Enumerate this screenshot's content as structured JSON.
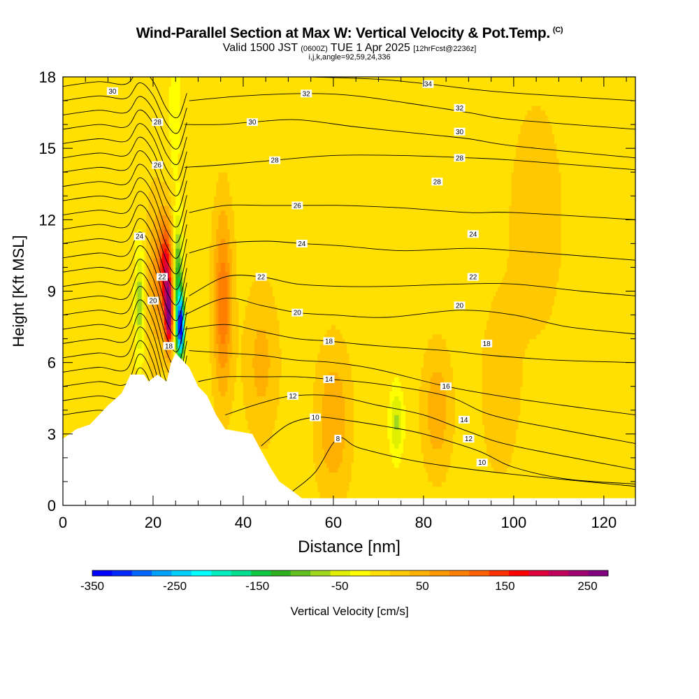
{
  "chart_data": {
    "type": "heatmap",
    "title": "Wind-Parallel Section at Max W: Vertical Velocity & Pot.Temp.",
    "title_tag": "(C)",
    "subtitle_parts": [
      "Valid 1500 JST",
      "(0600Z)",
      "TUE 1 Apr 2025",
      "[12hrFcst@2236z]"
    ],
    "subtitle2": "i,j,k,angle=92,59,24,336",
    "xlabel": "Distance [nm]",
    "ylabel": "Height [Kft MSL]",
    "xlim": [
      0,
      127
    ],
    "ylim": [
      0,
      18
    ],
    "x_ticks": [
      "0",
      "20",
      "40",
      "60",
      "80",
      "100",
      "120"
    ],
    "y_ticks": [
      "0",
      "3",
      "6",
      "9",
      "12",
      "15",
      "18"
    ],
    "colorbar": {
      "label": "Vertical Velocity [cm/s]",
      "min": -350,
      "max": 275,
      "step": 25,
      "tick_labels": [
        "-350",
        "-250",
        "-150",
        "-50",
        "50",
        "150",
        "250"
      ],
      "colors": [
        "#0000ff",
        "#0028ff",
        "#0064ff",
        "#00a0ff",
        "#00d0ff",
        "#00ffff",
        "#00f0c0",
        "#00e090",
        "#10c840",
        "#30b020",
        "#60c020",
        "#a0d820",
        "#e0f000",
        "#ffff00",
        "#ffe000",
        "#ffc800",
        "#ffb000",
        "#ff9800",
        "#ff8000",
        "#ff6000",
        "#ff3000",
        "#ff0000",
        "#e0003a",
        "#c0005a",
        "#a00070",
        "#800080"
      ]
    },
    "terrain": [
      [
        0,
        2.8
      ],
      [
        3,
        3.2
      ],
      [
        6,
        3.4
      ],
      [
        8,
        3.8
      ],
      [
        10,
        4.2
      ],
      [
        13,
        4.7
      ],
      [
        15,
        5.5
      ],
      [
        18,
        5.5
      ],
      [
        19,
        5.2
      ],
      [
        21,
        5.5
      ],
      [
        23,
        5.2
      ],
      [
        24,
        6.0
      ],
      [
        25,
        6.4
      ],
      [
        28,
        5.8
      ],
      [
        30,
        5.0
      ],
      [
        32,
        4.6
      ],
      [
        34,
        3.8
      ],
      [
        36,
        3.2
      ],
      [
        42,
        3.0
      ],
      [
        44,
        2.3
      ],
      [
        46,
        1.6
      ],
      [
        48,
        1.0
      ],
      [
        51,
        0.6
      ],
      [
        53,
        0.3
      ],
      [
        127,
        0.3
      ]
    ],
    "velocity_cells": [
      {
        "x": 17,
        "z": 8.5,
        "w": -80,
        "sx": 1.0,
        "sz": 2.5
      },
      {
        "x": 20.5,
        "z": 9.5,
        "w": 60,
        "sx": 1.8,
        "sz": 3.2
      },
      {
        "x": 22.8,
        "z": 10.0,
        "w": 180,
        "sx": 1.4,
        "sz": 2.0
      },
      {
        "x": 23.5,
        "z": 8.0,
        "w": 250,
        "sx": 0.9,
        "sz": 1.4
      },
      {
        "x": 25.5,
        "z": 9.0,
        "w": -150,
        "sx": 1.0,
        "sz": 2.8
      },
      {
        "x": 26.2,
        "z": 7.5,
        "w": -320,
        "sx": 0.8,
        "sz": 1.2
      },
      {
        "x": 24.8,
        "z": 16.5,
        "w": -40,
        "sx": 1.2,
        "sz": 2.5
      },
      {
        "x": 35.5,
        "z": 8.5,
        "w": 110,
        "sx": 2.0,
        "sz": 3.6
      },
      {
        "x": 44,
        "z": 6.0,
        "w": 45,
        "sx": 3.5,
        "sz": 3.0
      },
      {
        "x": 60,
        "z": 3.5,
        "w": 60,
        "sx": 3.5,
        "sz": 3.0
      },
      {
        "x": 74,
        "z": 3.5,
        "w": -70,
        "sx": 1.5,
        "sz": 1.5
      },
      {
        "x": 83,
        "z": 4.0,
        "w": 55,
        "sx": 3.0,
        "sz": 2.5
      },
      {
        "x": 97,
        "z": 5.0,
        "w": 30,
        "sx": 4.0,
        "sz": 3.5
      },
      {
        "x": 105,
        "z": 12.0,
        "w": 25,
        "sx": 6.0,
        "sz": 5.0
      }
    ],
    "theta_contours": [
      {
        "label": "8",
        "label_x": 61,
        "points": [
          [
            51,
            0.6
          ],
          [
            56,
            1.4
          ],
          [
            61,
            2.8
          ],
          [
            66,
            2.4
          ],
          [
            80,
            1.8
          ],
          [
            100,
            1.3
          ],
          [
            127,
            0.8
          ]
        ]
      },
      {
        "label": "10",
        "label_x": 56,
        "points": [
          [
            44,
            2.5
          ],
          [
            50,
            3.4
          ],
          [
            56,
            3.7
          ],
          [
            62,
            3.6
          ],
          [
            72,
            3.3
          ],
          [
            80,
            3.0
          ],
          [
            92,
            2.3
          ],
          [
            100,
            1.6
          ],
          [
            112,
            1.1
          ],
          [
            127,
            0.9
          ]
        ]
      },
      {
        "label": "12",
        "label_x": 51,
        "points": [
          [
            36,
            3.8
          ],
          [
            44,
            4.3
          ],
          [
            51,
            4.6
          ],
          [
            60,
            4.6
          ],
          [
            70,
            4.2
          ],
          [
            80,
            3.8
          ],
          [
            90,
            3.1
          ],
          [
            100,
            2.5
          ],
          [
            127,
            1.5
          ]
        ]
      },
      {
        "label": "14",
        "label_x": 59,
        "points": [
          [
            30,
            5.2
          ],
          [
            36,
            5.4
          ],
          [
            44,
            5.4
          ],
          [
            52,
            5.4
          ],
          [
            59,
            5.3
          ],
          [
            70,
            5.1
          ],
          [
            85,
            4.6
          ],
          [
            95,
            3.8
          ],
          [
            110,
            3.2
          ],
          [
            127,
            2.6
          ]
        ]
      },
      {
        "label": "16",
        "label_x": 85,
        "points": [
          [
            28,
            6.5
          ],
          [
            36,
            6.4
          ],
          [
            44,
            6.3
          ],
          [
            52,
            6.1
          ],
          [
            60,
            6.0
          ],
          [
            70,
            5.7
          ],
          [
            85,
            5.0
          ],
          [
            100,
            4.5
          ],
          [
            115,
            4.1
          ],
          [
            127,
            3.8
          ]
        ]
      },
      {
        "label": "18",
        "label_x": 59,
        "points": [
          [
            27,
            7.4
          ],
          [
            36,
            7.6
          ],
          [
            44,
            7.3
          ],
          [
            52,
            7.0
          ],
          [
            59,
            6.9
          ],
          [
            70,
            6.7
          ],
          [
            85,
            6.5
          ],
          [
            95,
            6.3
          ],
          [
            110,
            6.1
          ],
          [
            127,
            6.0
          ]
        ]
      },
      {
        "label": "20",
        "label_x": 52,
        "points": [
          [
            27,
            8.0
          ],
          [
            36,
            8.7
          ],
          [
            44,
            8.4
          ],
          [
            52,
            8.1
          ],
          [
            60,
            8.0
          ],
          [
            72,
            7.9
          ],
          [
            88,
            8.2
          ],
          [
            100,
            8.0
          ],
          [
            112,
            7.5
          ],
          [
            127,
            7.2
          ]
        ]
      },
      {
        "label": "22",
        "label_x": 44,
        "points": [
          [
            28,
            8.8
          ],
          [
            36,
            9.6
          ],
          [
            44,
            9.6
          ],
          [
            52,
            9.3
          ],
          [
            62,
            9.2
          ],
          [
            72,
            9.2
          ],
          [
            88,
            9.3
          ],
          [
            100,
            9.3
          ],
          [
            115,
            9.0
          ],
          [
            127,
            8.8
          ]
        ]
      },
      {
        "label": "24",
        "label_x": 53,
        "points": [
          [
            28,
            10.6
          ],
          [
            36,
            11.0
          ],
          [
            45,
            11.1
          ],
          [
            53,
            11.0
          ],
          [
            62,
            10.9
          ],
          [
            75,
            10.7
          ],
          [
            90,
            10.8
          ],
          [
            100,
            10.7
          ],
          [
            127,
            10.3
          ]
        ]
      },
      {
        "label": "26",
        "label_x": 52,
        "points": [
          [
            28,
            12.3
          ],
          [
            36,
            12.6
          ],
          [
            45,
            12.6
          ],
          [
            52,
            12.6
          ],
          [
            62,
            12.6
          ],
          [
            75,
            12.5
          ],
          [
            90,
            12.3
          ],
          [
            100,
            12.3
          ],
          [
            127,
            12.0
          ]
        ]
      },
      {
        "label": "28",
        "label_x": 47,
        "points": [
          [
            27,
            14.2
          ],
          [
            35,
            14.3
          ],
          [
            47,
            14.5
          ],
          [
            60,
            14.7
          ],
          [
            75,
            14.7
          ],
          [
            90,
            14.6
          ],
          [
            100,
            14.5
          ],
          [
            127,
            14.1
          ]
        ]
      },
      {
        "label": "30",
        "label_x": 42,
        "points": [
          [
            27,
            16.0
          ],
          [
            35,
            16.0
          ],
          [
            42,
            16.1
          ],
          [
            52,
            16.2
          ],
          [
            65,
            15.9
          ],
          [
            80,
            15.6
          ],
          [
            90,
            15.4
          ],
          [
            100,
            15.1
          ],
          [
            127,
            14.6
          ]
        ]
      },
      {
        "label": "32",
        "label_x": 54,
        "points": [
          [
            28,
            17.0
          ],
          [
            40,
            17.2
          ],
          [
            54,
            17.3
          ],
          [
            65,
            17.2
          ],
          [
            80,
            16.8
          ],
          [
            90,
            16.5
          ],
          [
            100,
            16.2
          ],
          [
            127,
            15.8
          ]
        ]
      },
      {
        "label": "34",
        "label_x": 81,
        "points": [
          [
            55,
            18.0
          ],
          [
            70,
            17.9
          ],
          [
            81,
            17.7
          ],
          [
            95,
            17.4
          ],
          [
            110,
            17.2
          ],
          [
            127,
            17.0
          ]
        ]
      }
    ],
    "extra_labels": [
      {
        "text": "30",
        "x": 11,
        "z": 17.4
      },
      {
        "text": "28",
        "x": 21,
        "z": 16.1
      },
      {
        "text": "26",
        "x": 21,
        "z": 14.3
      },
      {
        "text": "24",
        "x": 17,
        "z": 11.3
      },
      {
        "text": "22",
        "x": 22,
        "z": 9.6
      },
      {
        "text": "20",
        "x": 20,
        "z": 8.6
      },
      {
        "text": "18",
        "x": 23.5,
        "z": 6.7
      },
      {
        "text": "32",
        "x": 88,
        "z": 16.7
      },
      {
        "text": "30",
        "x": 88,
        "z": 15.7
      },
      {
        "text": "28",
        "x": 88,
        "z": 14.6
      },
      {
        "text": "28",
        "x": 83,
        "z": 13.6
      },
      {
        "text": "24",
        "x": 91,
        "z": 11.4
      },
      {
        "text": "22",
        "x": 91,
        "z": 9.6
      },
      {
        "text": "20",
        "x": 88,
        "z": 8.4
      },
      {
        "text": "18",
        "x": 94,
        "z": 6.8
      },
      {
        "text": "14",
        "x": 89,
        "z": 3.6
      },
      {
        "text": "12",
        "x": 90,
        "z": 2.8
      },
      {
        "text": "10",
        "x": 93,
        "z": 1.8
      }
    ]
  }
}
